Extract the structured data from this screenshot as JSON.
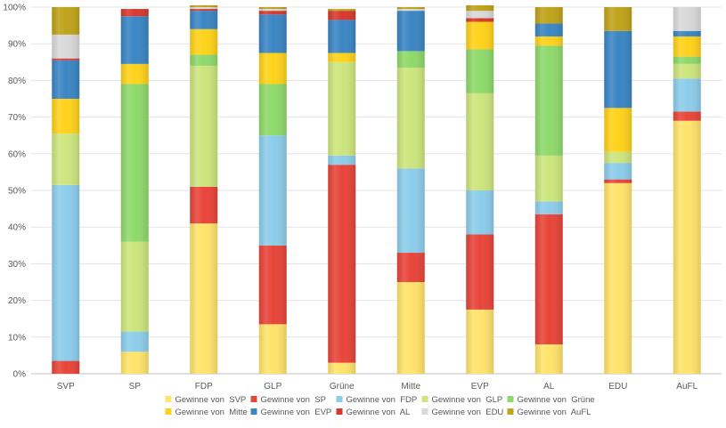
{
  "chart_data": {
    "type": "bar",
    "stacked": true,
    "percent": true,
    "title": "",
    "xlabel": "",
    "ylabel": "",
    "ylim": [
      0,
      100
    ],
    "yticks": [
      "0%",
      "10%",
      "20%",
      "30%",
      "40%",
      "50%",
      "60%",
      "70%",
      "80%",
      "90%",
      "100%"
    ],
    "legend_position": "bottom",
    "categories": [
      "SVP",
      "SP",
      "FDP",
      "GLP",
      "Grüne",
      "Mitte",
      "EVP",
      "AL",
      "EDU",
      "AuFL"
    ],
    "series": [
      {
        "name": "Gewinne von  SVP",
        "color": "#FFE36B",
        "values": [
          0,
          6,
          41,
          13.5,
          3,
          25,
          17.5,
          8,
          52,
          69
        ]
      },
      {
        "name": "Gewinne von  SP",
        "color": "#E8453A",
        "values": [
          3.5,
          0,
          10,
          21.5,
          54,
          8,
          20.5,
          35.5,
          1,
          2.5
        ]
      },
      {
        "name": "Gewinne von  FDP",
        "color": "#8DCDEA",
        "values": [
          48,
          5.5,
          0,
          30,
          2.5,
          23,
          12,
          3.5,
          4.5,
          9
        ]
      },
      {
        "name": "Gewinne von  GLP",
        "color": "#CDE57D",
        "values": [
          14,
          24.5,
          33,
          0,
          25.5,
          27.5,
          26.5,
          12.5,
          3,
          4
        ]
      },
      {
        "name": "Gewinne von  Grüne",
        "color": "#8FD96B",
        "values": [
          0,
          43,
          3,
          14,
          0,
          4.5,
          12,
          30,
          0,
          2
        ]
      },
      {
        "name": "Gewinne von  Mitte",
        "color": "#FFD21A",
        "values": [
          9.5,
          5.5,
          7,
          8.5,
          2.5,
          0,
          7.5,
          2.5,
          12,
          5.5
        ]
      },
      {
        "name": "Gewinne von  EVP",
        "color": "#3B86C4",
        "values": [
          10.5,
          13,
          5,
          10.5,
          9,
          11,
          0,
          3.5,
          21,
          1.5
        ]
      },
      {
        "name": "Gewinne von  AL",
        "color": "#D63A2E",
        "values": [
          0.5,
          2,
          0.5,
          1,
          2.5,
          0,
          1,
          0,
          0,
          0
        ]
      },
      {
        "name": "Gewinne von  EDU",
        "color": "#D9D9D9",
        "values": [
          6.5,
          0,
          0.5,
          0.5,
          0,
          0.5,
          2,
          0,
          0,
          6.5
        ]
      },
      {
        "name": "Gewinne von  AuFL",
        "color": "#BFA31A",
        "values": [
          7.5,
          0,
          0.5,
          0.5,
          0.5,
          0.5,
          1.5,
          4.5,
          6.5,
          0
        ]
      }
    ]
  }
}
